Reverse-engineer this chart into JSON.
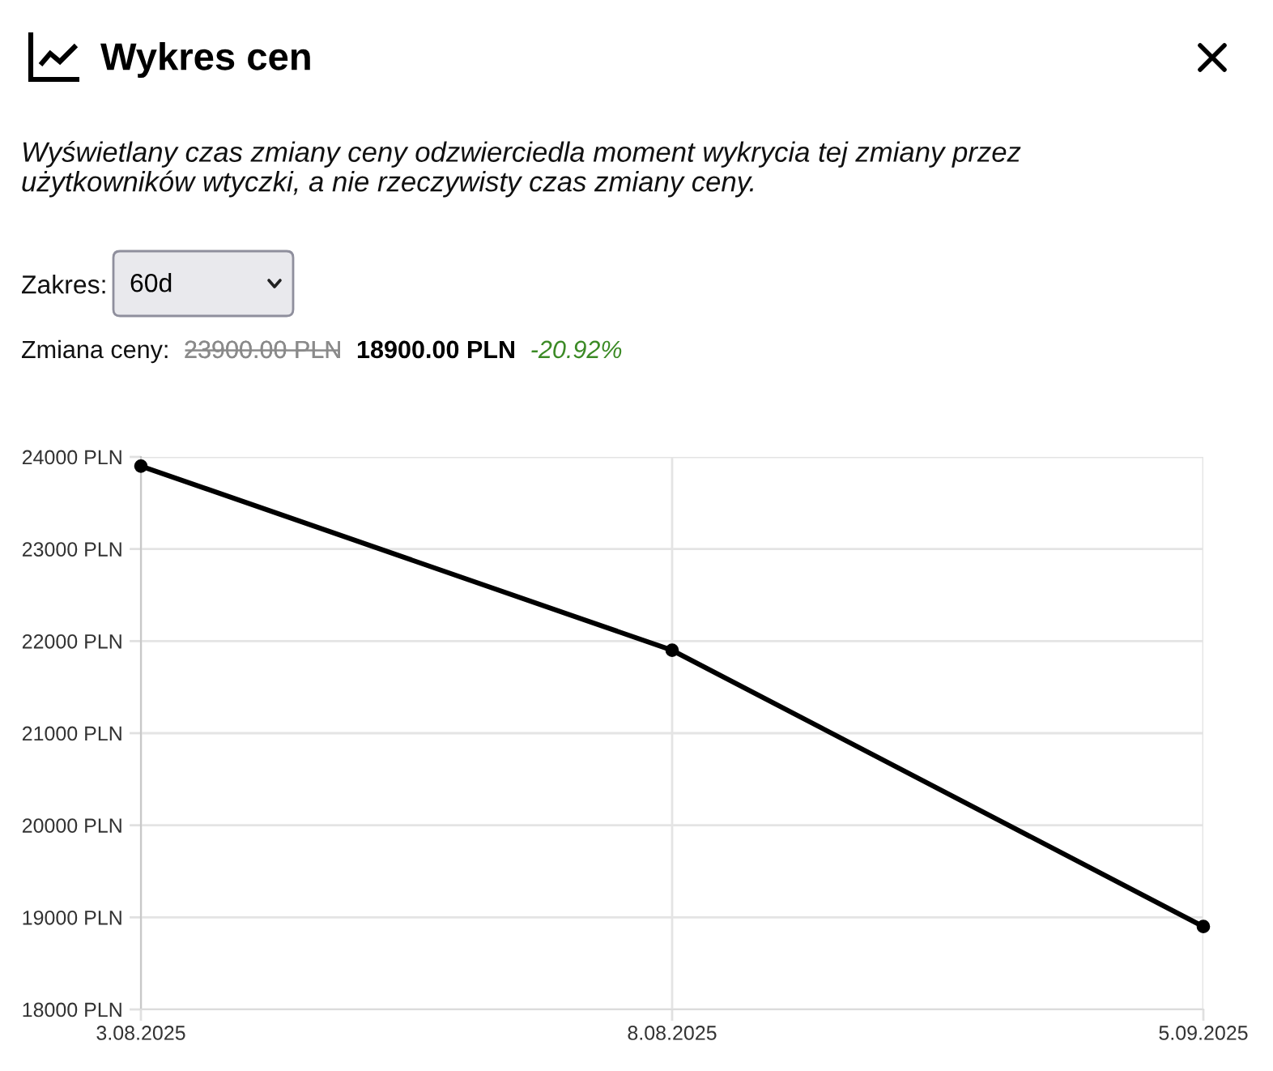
{
  "chart_data": {
    "type": "line",
    "title": "Wykres cen",
    "subtitle": "Wyświetlany czas zmiany ceny odzwierciedla moment wykrycia tej zmiany przez użytkowników wtyczki, a nie rzeczywisty czas zmiany ceny.",
    "annotations": [
      "Zakres:",
      "60d",
      "Zmiana ceny:",
      "23900.00 PLN",
      "18900.00 PLN",
      "-20.92%"
    ],
    "categories": [
      "3.08.2025",
      "8.08.2025",
      "5.09.2025"
    ],
    "series": [
      {
        "color": "#000000",
        "values": [
          23900,
          21900,
          18900
        ]
      }
    ],
    "ylim": [
      18000,
      24000
    ],
    "yticks": [
      {
        "value": 18000,
        "label": "18000 PLN"
      },
      {
        "value": 19000,
        "label": "19000 PLN"
      },
      {
        "value": 20000,
        "label": "20000 PLN"
      },
      {
        "value": 21000,
        "label": "21000 PLN"
      },
      {
        "value": 22000,
        "label": "22000 PLN"
      },
      {
        "value": 23000,
        "label": "23000 PLN"
      },
      {
        "value": 24000,
        "label": "24000 PLN"
      }
    ],
    "grid": true,
    "marker": "circle",
    "line_style": "solid"
  }
}
